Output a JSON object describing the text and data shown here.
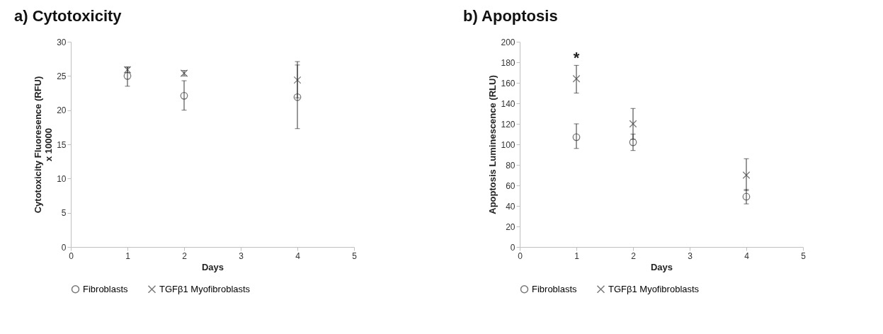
{
  "chart_data": [
    {
      "type": "scatter",
      "title": "a) Cytotoxicity",
      "xlabel": "Days",
      "ylabel": "Cytotoxicity Fluoresence (RFU)\nx 10000",
      "x": [
        1,
        2,
        4
      ],
      "xlim": [
        0,
        5
      ],
      "xticks": [
        0,
        1,
        2,
        3,
        4,
        5
      ],
      "ylim": [
        0,
        30
      ],
      "yticks": [
        0,
        5,
        10,
        15,
        20,
        25,
        30
      ],
      "grid": false,
      "legend": "bottom",
      "series": [
        {
          "name": "Fibroblasts",
          "color": "#404040",
          "marker": "circle",
          "values": [
            25,
            22.1,
            21.9
          ],
          "errors": [
            [
              23.5,
              26.3
            ],
            [
              20,
              24.3
            ],
            [
              17.3,
              26.6
            ]
          ]
        },
        {
          "name": "TGFβ1 Myofibroblasts",
          "color": "#404040",
          "marker": "cross",
          "values": [
            25.9,
            25.4,
            24.4
          ],
          "errors": [
            [
              25.5,
              26.3
            ],
            [
              25,
              25.8
            ],
            [
              21.8,
              27.1
            ]
          ]
        }
      ]
    },
    {
      "type": "scatter",
      "title": "b) Apoptosis",
      "xlabel": "Days",
      "ylabel": "Apoptosis Luminescence (RLU)",
      "x": [
        1,
        2,
        4
      ],
      "xlim": [
        0,
        5
      ],
      "xticks": [
        0,
        1,
        2,
        3,
        4,
        5
      ],
      "ylim": [
        0,
        200
      ],
      "yticks": [
        0,
        20,
        40,
        60,
        80,
        100,
        120,
        140,
        160,
        180,
        200
      ],
      "grid": false,
      "legend": "bottom",
      "annotations": [
        "*"
      ],
      "series": [
        {
          "name": "Fibroblasts",
          "color": "#404040",
          "marker": "circle",
          "values": [
            107,
            102,
            49
          ],
          "errors": [
            [
              96,
              120
            ],
            [
              94,
              110
            ],
            [
              42,
              56
            ]
          ]
        },
        {
          "name": "TGFβ1 Myofibroblasts",
          "color": "#404040",
          "marker": "cross",
          "values": [
            164,
            120,
            70
          ],
          "errors": [
            [
              150,
              177
            ],
            [
              105,
              135
            ],
            [
              55,
              86
            ]
          ]
        }
      ]
    }
  ]
}
